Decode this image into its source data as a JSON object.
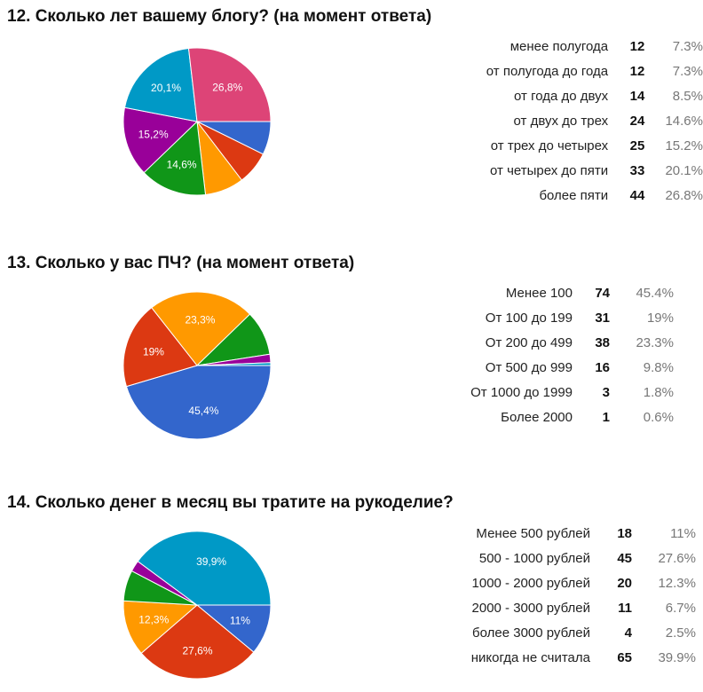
{
  "chart_data": [
    {
      "type": "pie",
      "title": "12. Сколько лет вашему блогу? (на момент ответа)",
      "categories": [
        "менее полугода",
        "от полугода до года",
        "от года до двух",
        "от двух до трех",
        "от трех до четырех",
        "от четырех до пяти",
        "более пяти"
      ],
      "values": [
        12,
        12,
        14,
        24,
        25,
        33,
        44
      ],
      "percents": [
        "7.3%",
        "7.3%",
        "8.5%",
        "14.6%",
        "15.2%",
        "20.1%",
        "26.8%"
      ],
      "slice_labels": [
        "",
        "",
        "",
        "14,6%",
        "15,2%",
        "20,1%",
        "26,8%"
      ],
      "colors": [
        "#3366cc",
        "#dc3912",
        "#ff9900",
        "#109618",
        "#990099",
        "#0099c6",
        "#dd4477"
      ]
    },
    {
      "type": "pie",
      "title": "13. Сколько у вас ПЧ? (на момент ответа)",
      "categories": [
        "Менее 100",
        "От 100 до 199",
        "От 200 до 499",
        "От 500 до 999",
        "От 1000 до 1999",
        "Более 2000"
      ],
      "values": [
        74,
        31,
        38,
        16,
        3,
        1
      ],
      "percents": [
        "45.4%",
        "19%",
        "23.3%",
        "9.8%",
        "1.8%",
        "0.6%"
      ],
      "slice_labels": [
        "45,4%",
        "19%",
        "23,3%",
        "",
        "",
        ""
      ],
      "colors": [
        "#3366cc",
        "#dc3912",
        "#ff9900",
        "#109618",
        "#990099",
        "#0099c6"
      ]
    },
    {
      "type": "pie",
      "title": "14. Сколько денег в месяц вы тратите на рукоделие?",
      "categories": [
        "Менее 500 рублей",
        "500 - 1000 рублей",
        "1000 - 2000 рублей",
        "2000 - 3000 рублей",
        "более 3000 рублей",
        "никогда не считала"
      ],
      "values": [
        18,
        45,
        20,
        11,
        4,
        65
      ],
      "percents": [
        "11%",
        "27.6%",
        "12.3%",
        "6.7%",
        "2.5%",
        "39.9%"
      ],
      "slice_labels": [
        "11%",
        "27,6%",
        "12,3%",
        "",
        "",
        "39,9%"
      ],
      "colors": [
        "#3366cc",
        "#dc3912",
        "#ff9900",
        "#109618",
        "#990099",
        "#0099c6"
      ]
    }
  ],
  "questions": [
    {
      "title": "12. Сколько лет вашему блогу? (на момент ответа)",
      "rows": [
        {
          "label": "менее полугода",
          "count": "12",
          "pct": "7.3%"
        },
        {
          "label": "от полугода до года",
          "count": "12",
          "pct": "7.3%"
        },
        {
          "label": "от года до двух",
          "count": "14",
          "pct": "8.5%"
        },
        {
          "label": "от двух до трех",
          "count": "24",
          "pct": "14.6%"
        },
        {
          "label": "от трех до четырех",
          "count": "25",
          "pct": "15.2%"
        },
        {
          "label": "от четырех до пяти",
          "count": "33",
          "pct": "20.1%"
        },
        {
          "label": "более пяти",
          "count": "44",
          "pct": "26.8%"
        }
      ]
    },
    {
      "title": "13. Сколько у вас ПЧ? (на момент ответа)",
      "rows": [
        {
          "label": "Менее 100",
          "count": "74",
          "pct": "45.4%"
        },
        {
          "label": "От 100 до 199",
          "count": "31",
          "pct": "19%"
        },
        {
          "label": "От 200 до 499",
          "count": "38",
          "pct": "23.3%"
        },
        {
          "label": "От 500 до 999",
          "count": "16",
          "pct": "9.8%"
        },
        {
          "label": "От 1000 до 1999",
          "count": "3",
          "pct": "1.8%"
        },
        {
          "label": "Более 2000",
          "count": "1",
          "pct": "0.6%"
        }
      ]
    },
    {
      "title": "14. Сколько денег в месяц вы тратите на рукоделие?",
      "rows": [
        {
          "label": "Менее 500 рублей",
          "count": "18",
          "pct": "11%"
        },
        {
          "label": "500 - 1000 рублей",
          "count": "45",
          "pct": "27.6%"
        },
        {
          "label": "1000 - 2000 рублей",
          "count": "20",
          "pct": "12.3%"
        },
        {
          "label": "2000 - 3000 рублей",
          "count": "11",
          "pct": "6.7%"
        },
        {
          "label": "более 3000 рублей",
          "count": "4",
          "pct": "2.5%"
        },
        {
          "label": "никогда не считала",
          "count": "65",
          "pct": "39.9%"
        }
      ]
    }
  ]
}
